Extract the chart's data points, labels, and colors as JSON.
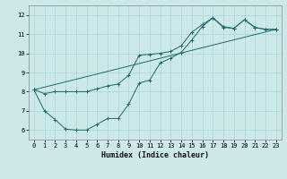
{
  "xlabel": "Humidex (Indice chaleur)",
  "background_color": "#cce8e8",
  "grid_color": "#aad4d4",
  "line_color": "#1a6b6b",
  "x_ticks": [
    0,
    1,
    2,
    3,
    4,
    5,
    6,
    7,
    8,
    9,
    10,
    11,
    12,
    13,
    14,
    15,
    16,
    17,
    18,
    19,
    20,
    21,
    22,
    23
  ],
  "y_ticks": [
    6,
    7,
    8,
    9,
    10,
    11,
    12
  ],
  "xlim": [
    -0.5,
    23.5
  ],
  "ylim": [
    5.5,
    12.5
  ],
  "line1_x": [
    0,
    1,
    2,
    3,
    4,
    5,
    6,
    7,
    8,
    9,
    10,
    11,
    12,
    13,
    14,
    15,
    16,
    17,
    18,
    19,
    20,
    21,
    22,
    23
  ],
  "line1_y": [
    8.1,
    7.9,
    8.0,
    8.0,
    8.0,
    8.0,
    8.15,
    8.3,
    8.4,
    8.85,
    9.9,
    9.95,
    10.0,
    10.1,
    10.4,
    11.1,
    11.5,
    11.85,
    11.35,
    11.3,
    11.75,
    11.35,
    11.25,
    11.25
  ],
  "line2_x": [
    0,
    1,
    2,
    3,
    4,
    5,
    6,
    7,
    8,
    9,
    10,
    11,
    12,
    13,
    14,
    15,
    16,
    17,
    18,
    19,
    20,
    21,
    22,
    23
  ],
  "line2_y": [
    8.1,
    7.0,
    6.55,
    6.05,
    6.0,
    6.0,
    6.3,
    6.6,
    6.6,
    7.35,
    8.45,
    8.6,
    9.5,
    9.75,
    10.05,
    10.7,
    11.4,
    11.85,
    11.4,
    11.3,
    11.75,
    11.35,
    11.25,
    11.25
  ],
  "line3_x": [
    0,
    23
  ],
  "line3_y": [
    8.1,
    11.25
  ],
  "tick_fontsize": 5.0,
  "xlabel_fontsize": 6.0
}
